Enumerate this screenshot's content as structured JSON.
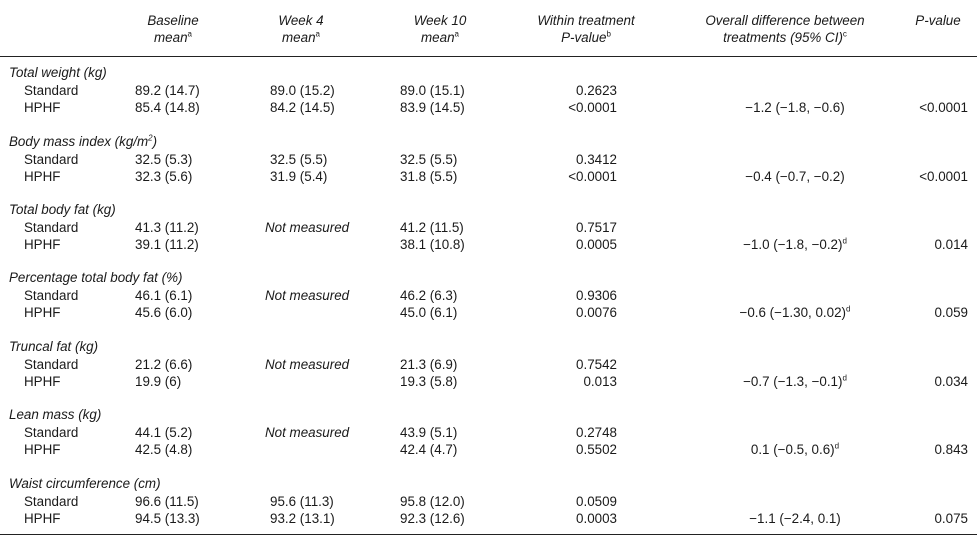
{
  "header": {
    "baseline": [
      "Baseline",
      "mean"
    ],
    "week4": [
      "Week 4",
      "mean"
    ],
    "week10": [
      "Week 10",
      "mean"
    ],
    "within": [
      "Within treatment",
      "P-value"
    ],
    "overall": [
      "Overall difference between",
      "treatments (95% CI)"
    ],
    "pvalue": "P-value",
    "sup_a": "a",
    "sup_b": "b",
    "sup_c": "c"
  },
  "sections": [
    {
      "title": "Total weight (kg)",
      "rows": [
        {
          "group": "Standard",
          "baseline": "89.2 (14.7)",
          "week4": "89.0 (15.2)",
          "week10": "89.0 (15.1)",
          "within_p": "0.2623"
        },
        {
          "group": "HPHF",
          "baseline": "85.4 (14.8)",
          "week4": "84.2 (14.5)",
          "week10": "83.9 (14.5)",
          "within_p": "<0.0001",
          "overall": "−1.2 (−1.8, −0.6)",
          "pvalue": "<0.0001"
        }
      ]
    },
    {
      "title": "Body mass index (kg/m",
      "title_sup": "2",
      "title_end": ")",
      "rows": [
        {
          "group": "Standard",
          "baseline": "32.5 (5.3)",
          "week4": "32.5 (5.5)",
          "week10": "32.5 (5.5)",
          "within_p": "0.3412"
        },
        {
          "group": "HPHF",
          "baseline": "32.3 (5.6)",
          "week4": "31.9 (5.4)",
          "week10": "31.8 (5.5)",
          "within_p": "<0.0001",
          "overall": "−0.4 (−0.7, −0.2)",
          "pvalue": "<0.0001"
        }
      ]
    },
    {
      "title": "Total body fat (kg)",
      "rows": [
        {
          "group": "Standard",
          "baseline": "41.3 (11.2)",
          "week4": "Not measured",
          "week10": "41.2 (11.5)",
          "within_p": "0.7517"
        },
        {
          "group": "HPHF",
          "baseline": "39.1 (11.2)",
          "week10": "38.1 (10.8)",
          "within_p": "0.0005",
          "overall": "−1.0 (−1.8, −0.2)",
          "overall_sup": "d",
          "pvalue": "0.014"
        }
      ]
    },
    {
      "title": "Percentage total body fat (%)",
      "rows": [
        {
          "group": "Standard",
          "baseline": "46.1 (6.1)",
          "week4": "Not measured",
          "week10": "46.2 (6.3)",
          "within_p": "0.9306"
        },
        {
          "group": "HPHF",
          "baseline": "45.6 (6.0)",
          "week10": "45.0 (6.1)",
          "within_p": "0.0076",
          "overall": "−0.6 (−1.30, 0.02)",
          "overall_sup": "d",
          "pvalue": "0.059"
        }
      ]
    },
    {
      "title": "Truncal fat (kg)",
      "rows": [
        {
          "group": "Standard",
          "baseline": "21.2 (6.6)",
          "week4": "Not measured",
          "week10": "21.3 (6.9)",
          "within_p": "0.7542"
        },
        {
          "group": "HPHF",
          "baseline": "19.9 (6)",
          "week10": "19.3 (5.8)",
          "within_p": "0.013",
          "overall": "−0.7 (−1.3, −0.1)",
          "overall_sup": "d",
          "pvalue": "0.034"
        }
      ]
    },
    {
      "title": "Lean mass (kg)",
      "rows": [
        {
          "group": "Standard",
          "baseline": "44.1 (5.2)",
          "week4": "Not measured",
          "week10": "43.9 (5.1)",
          "within_p": "0.2748"
        },
        {
          "group": "HPHF",
          "baseline": "42.5 (4.8)",
          "week10": "42.4 (4.7)",
          "within_p": "0.5502",
          "overall": "0.1 (−0.5, 0.6)",
          "overall_sup": "d",
          "pvalue": "0.843"
        }
      ]
    },
    {
      "title": "Waist circumference (cm)",
      "rows": [
        {
          "group": "Standard",
          "baseline": "96.6 (11.5)",
          "week4": "95.6 (11.3)",
          "week10": "95.8 (12.0)",
          "within_p": "0.0509"
        },
        {
          "group": "HPHF",
          "baseline": "94.5 (13.3)",
          "week4": "93.2 (13.1)",
          "week10": "92.3 (12.6)",
          "within_p": "0.0003",
          "overall": "−1.1 (−2.4, 0.1)",
          "pvalue": "0.075"
        }
      ]
    }
  ]
}
